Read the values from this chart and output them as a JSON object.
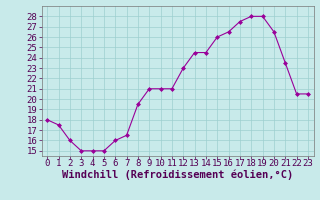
{
  "x": [
    0,
    1,
    2,
    3,
    4,
    5,
    6,
    7,
    8,
    9,
    10,
    11,
    12,
    13,
    14,
    15,
    16,
    17,
    18,
    19,
    20,
    21,
    22,
    23
  ],
  "y": [
    18,
    17.5,
    16,
    15,
    15,
    15,
    16,
    16.5,
    19.5,
    21,
    21,
    21,
    23,
    24.5,
    24.5,
    26,
    26.5,
    27.5,
    28,
    28,
    26.5,
    23.5,
    20.5,
    20.5
  ],
  "line_color": "#990099",
  "marker_color": "#990099",
  "bg_color": "#c8eaea",
  "grid_color": "#9dcfcf",
  "xlabel": "Windchill (Refroidissement éolien,°C)",
  "xlim": [
    -0.5,
    23.5
  ],
  "ylim": [
    14.5,
    29.0
  ],
  "yticks": [
    15,
    16,
    17,
    18,
    19,
    20,
    21,
    22,
    23,
    24,
    25,
    26,
    27,
    28
  ],
  "xtick_labels": [
    "0",
    "1",
    "2",
    "3",
    "4",
    "5",
    "6",
    "7",
    "8",
    "9",
    "10",
    "11",
    "12",
    "13",
    "14",
    "15",
    "16",
    "17",
    "18",
    "19",
    "20",
    "21",
    "22",
    "23"
  ],
  "tick_fontsize": 6.5,
  "xlabel_fontsize": 7.5
}
